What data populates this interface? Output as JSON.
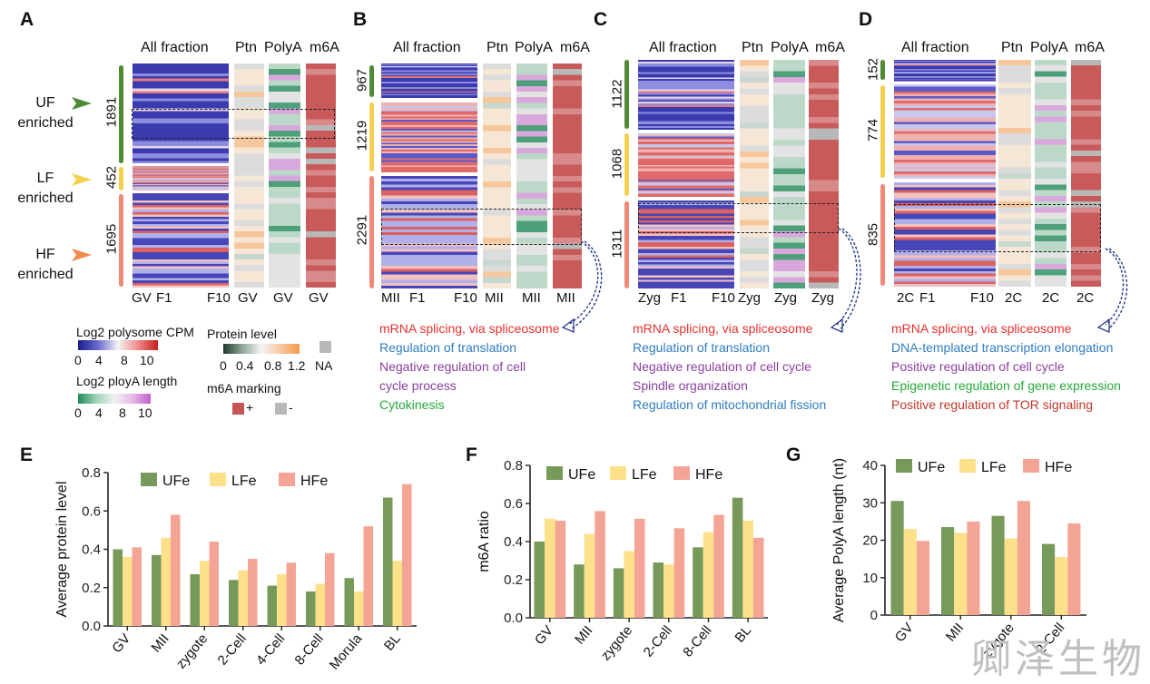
{
  "panels": {
    "A": {
      "label": "A",
      "headers": {
        "all": "All fraction",
        "ptn": "Ptn",
        "polya": "PolyA",
        "m6a": "m6A"
      },
      "clusters": [
        "1891",
        "452",
        "1695"
      ],
      "side_labels": [
        {
          "name": "UF",
          "sub": "enriched"
        },
        {
          "name": "LF",
          "sub": "enriched"
        },
        {
          "name": "HF",
          "sub": "enriched"
        }
      ],
      "footer": {
        "stage": "GV",
        "f1": "F1",
        "f10": "F10",
        "c1": "GV",
        "c2": "GV",
        "c3": "GV"
      }
    },
    "B": {
      "label": "B",
      "headers": {
        "all": "All fraction",
        "ptn": "Ptn",
        "polya": "PolyA",
        "m6a": "m6A"
      },
      "clusters": [
        "967",
        "1219",
        "2291"
      ],
      "footer": {
        "stage": "MII",
        "f1": "F1",
        "f10": "F10",
        "c1": "MII",
        "c2": "MII",
        "c3": "MII"
      },
      "go_terms": [
        {
          "text": "mRNA splicing,  via spliceosome",
          "color": "#e8312f"
        },
        {
          "text": "Regulation of translation",
          "color": "#2f7cc0"
        },
        {
          "text": "Negative regulation of cell",
          "color": "#8a3fa0"
        },
        {
          "text": "cycle process",
          "color": "#8a3fa0"
        },
        {
          "text": "Cytokinesis",
          "color": "#25a83a"
        }
      ]
    },
    "C": {
      "label": "C",
      "headers": {
        "all": "All fraction",
        "ptn": "Ptn",
        "polya": "PolyA",
        "m6a": "m6A"
      },
      "clusters": [
        "1122",
        "1068",
        "1311"
      ],
      "footer": {
        "stage": "Zyg",
        "f1": "F1",
        "f10": "F10",
        "c1": "Zyg",
        "c2": "Zyg",
        "c3": "Zyg"
      },
      "go_terms": [
        {
          "text": "mRNA splicing,  via spliceosome",
          "color": "#e8312f"
        },
        {
          "text": "Regulation of translation",
          "color": "#2f7cc0"
        },
        {
          "text": "Negative regulation of cell  cycle",
          "color": "#8a3fa0"
        },
        {
          "text": "Spindle organization",
          "color": "#8a3fa0"
        },
        {
          "text": "Regulation of mitochondrial fission",
          "color": "#2f7cc0"
        }
      ]
    },
    "D": {
      "label": "D",
      "headers": {
        "all": "All fraction",
        "ptn": "Ptn",
        "polya": "PolyA",
        "m6a": "m6A"
      },
      "clusters": [
        "152",
        "774",
        "835"
      ],
      "footer": {
        "stage": "2C",
        "f1": "F1",
        "f10": "F10",
        "c1": "2C",
        "c2": "2C",
        "c3": "2C"
      },
      "go_terms": [
        {
          "text": "mRNA splicing,  via spliceosome",
          "color": "#e8312f"
        },
        {
          "text": "DNA-templated transcription elongation",
          "color": "#2f7cc0"
        },
        {
          "text": "Positive regulation of cell cycle",
          "color": "#8a3fa0"
        },
        {
          "text": "Epigenetic regulation of gene expression",
          "color": "#25a83a"
        },
        {
          "text": "Positive regulation of TOR signaling",
          "color": "#c0392b"
        }
      ]
    }
  },
  "legends": {
    "polysome": {
      "title": "Log2 polysome CPM",
      "ticks": [
        "0",
        "4",
        "8",
        "10"
      ]
    },
    "polya": {
      "title": "Log2 ployA length",
      "ticks": [
        "0",
        "4",
        "8",
        "10"
      ]
    },
    "protein": {
      "title": "Protein level",
      "ticks": [
        "0",
        "0.4",
        "0.8",
        "1.2"
      ],
      "na": "NA"
    },
    "m6a": {
      "title": "m6A marking",
      "plus": "+",
      "minus": "-"
    }
  },
  "colors": {
    "UFe": "#77995a",
    "LFe": "#fde08a",
    "HFe": "#f4a495",
    "green_bar": "#5a8a3a",
    "yellow_bar": "#f5cf55",
    "salmon_bar": "#f08a78"
  },
  "watermark": "卿泽生物",
  "chart_data": [
    {
      "panel": "E",
      "type": "bar",
      "ylabel": "Average protein level",
      "ylim": [
        0,
        0.8
      ],
      "yticks": [
        "0.0",
        "0.2",
        "0.4",
        "0.6",
        "0.8"
      ],
      "categories": [
        "GV",
        "MII",
        "zygote",
        "2-Cell",
        "4-Cell",
        "8-Cell",
        "Morula",
        "BL"
      ],
      "series": [
        {
          "name": "UFe",
          "values": [
            0.4,
            0.37,
            0.27,
            0.24,
            0.21,
            0.18,
            0.25,
            0.67
          ]
        },
        {
          "name": "LFe",
          "values": [
            0.36,
            0.46,
            0.34,
            0.29,
            0.27,
            0.22,
            0.18,
            0.34
          ]
        },
        {
          "name": "HFe",
          "values": [
            0.41,
            0.58,
            0.44,
            0.35,
            0.33,
            0.38,
            0.52,
            0.74
          ]
        }
      ]
    },
    {
      "panel": "F",
      "type": "bar",
      "ylabel": "m6A ratio",
      "ylim": [
        0,
        0.8
      ],
      "yticks": [
        "0.0",
        "0.2",
        "0.4",
        "0.6",
        "0.8"
      ],
      "categories": [
        "GV",
        "MII",
        "zygote",
        "2-Cell",
        "8-Cell",
        "BL"
      ],
      "series": [
        {
          "name": "UFe",
          "values": [
            0.4,
            0.28,
            0.26,
            0.29,
            0.37,
            0.63
          ]
        },
        {
          "name": "LFe",
          "values": [
            0.52,
            0.44,
            0.35,
            0.28,
            0.45,
            0.51
          ]
        },
        {
          "name": "HFe",
          "values": [
            0.51,
            0.56,
            0.52,
            0.47,
            0.54,
            0.42
          ]
        }
      ]
    },
    {
      "panel": "G",
      "type": "bar",
      "ylabel": "Average PolyA length (nt)",
      "ylim": [
        0,
        40
      ],
      "yticks": [
        "0",
        "10",
        "20",
        "30",
        "40"
      ],
      "categories": [
        "GV",
        "MII",
        "zygote",
        "2-Cell"
      ],
      "series": [
        {
          "name": "UFe",
          "values": [
            30.5,
            23.5,
            26.5,
            19
          ]
        },
        {
          "name": "LFe",
          "values": [
            23,
            22,
            20.5,
            15.5
          ]
        },
        {
          "name": "HFe",
          "values": [
            19.8,
            25,
            30.5,
            24.5
          ]
        }
      ]
    }
  ]
}
